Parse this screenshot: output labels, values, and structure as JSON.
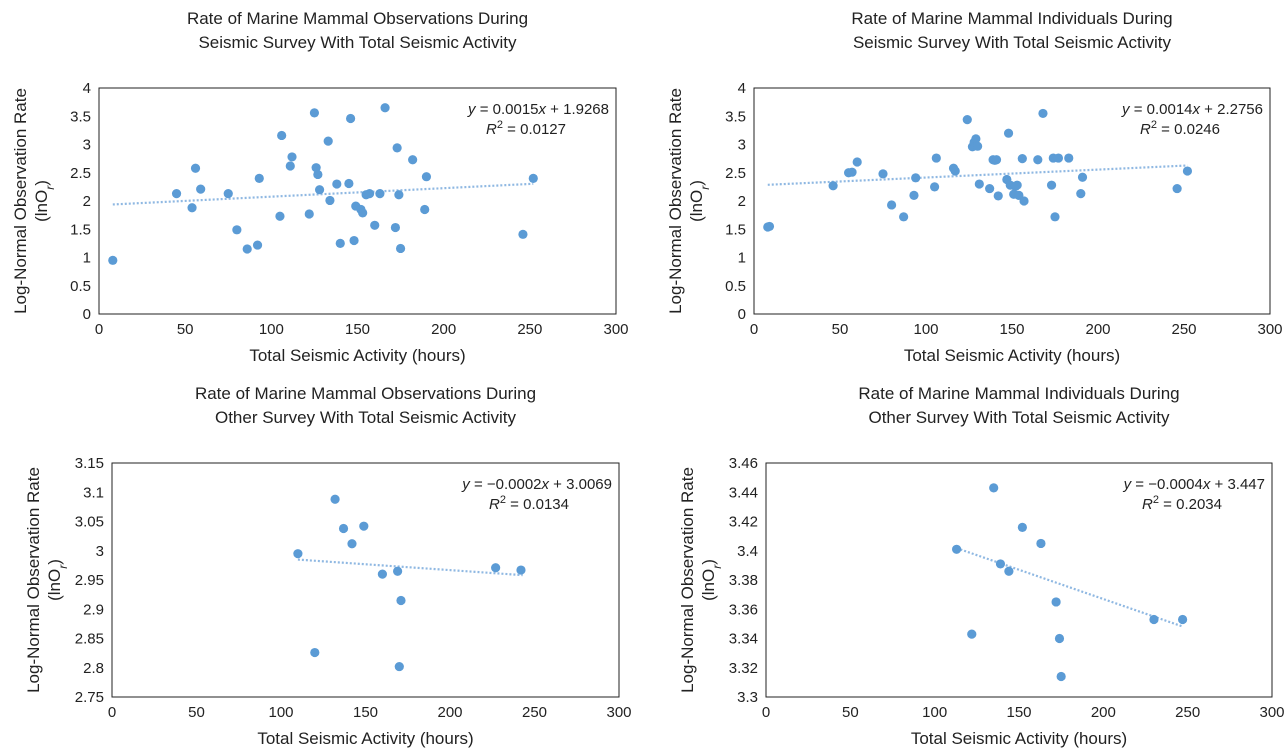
{
  "colors": {
    "point": "#5b9bd5",
    "trendline": "#8fb8e2",
    "frame": "#222222"
  },
  "chart_data": [
    {
      "type": "scatter",
      "title": [
        "Rate of Marine Mammal Observations During",
        "Seismic Survey With Total Seismic Activity"
      ],
      "xlabel": "Total Seismic Activity (hours)",
      "ylabel": [
        "Log-Normal Observation Rate",
        "(lnO",
        "r",
        ")"
      ],
      "xlim": [
        0,
        300
      ],
      "xticks": [
        "0",
        "50",
        "100",
        "150",
        "200",
        "250",
        "300"
      ],
      "ylim": [
        0,
        4
      ],
      "yticks": [
        "0",
        "0.5",
        "1",
        "1.5",
        "2",
        "2.5",
        "3",
        "3.5",
        "4"
      ],
      "trendline": {
        "slope": 0.0015,
        "intercept": 1.9268,
        "x_range": [
          8,
          252
        ]
      },
      "equation": {
        "prefix": "y",
        "text": " = 0.0015",
        "var": "x",
        "rest": " + 1.9268",
        "r2_label": "R",
        "r2_exp": "2",
        "r2_value": " = 0.0127"
      },
      "x": [
        8,
        45,
        54,
        56,
        59,
        75,
        80,
        86,
        92,
        93,
        105,
        106,
        111,
        112,
        122,
        125,
        126,
        127,
        128,
        133,
        134,
        138,
        140,
        145,
        146,
        148,
        149,
        152,
        153,
        155,
        157,
        160,
        163,
        166,
        172,
        173,
        174,
        175,
        182,
        189,
        190,
        246,
        252
      ],
      "y": [
        0.95,
        2.13,
        1.88,
        2.58,
        2.21,
        2.13,
        1.49,
        1.15,
        1.22,
        2.4,
        1.73,
        3.16,
        2.62,
        2.78,
        1.77,
        3.56,
        2.59,
        2.47,
        2.2,
        3.06,
        2.01,
        2.3,
        1.25,
        2.31,
        3.46,
        1.3,
        1.91,
        1.85,
        1.79,
        2.11,
        2.13,
        1.57,
        2.13,
        3.65,
        1.53,
        2.94,
        2.11,
        1.16,
        2.73,
        1.85,
        2.43,
        1.41,
        2.4
      ]
    },
    {
      "type": "scatter",
      "title": [
        "Rate of Marine Mammal Individuals During",
        "Seismic Survey With Total Seismic Activity"
      ],
      "xlabel": "Total Seismic Activity (hours)",
      "ylabel": [
        "Log-Normal Observation Rate",
        "(lnO",
        "r",
        ")"
      ],
      "xlim": [
        0,
        300
      ],
      "xticks": [
        "0",
        "50",
        "100",
        "150",
        "200",
        "250",
        "300"
      ],
      "ylim": [
        0,
        4
      ],
      "yticks": [
        "0",
        "0.5",
        "1",
        "1.5",
        "2",
        "2.5",
        "3",
        "3.5",
        "4"
      ],
      "trendline": {
        "slope": 0.0014,
        "intercept": 2.2756,
        "x_range": [
          8,
          252
        ]
      },
      "equation": {
        "prefix": "y",
        "text": " = 0.0014",
        "var": "x",
        "rest": " + 2.2756",
        "r2_label": "R",
        "r2_exp": "2",
        "r2_value": " = 0.0246"
      },
      "x": [
        8,
        9,
        46,
        55,
        57,
        60,
        75,
        80,
        87,
        93,
        94,
        105,
        106,
        116,
        117,
        124,
        127,
        128,
        129,
        130,
        131,
        137,
        139,
        140,
        141,
        142,
        147,
        148,
        149,
        151,
        152,
        153,
        154,
        156,
        157,
        165,
        168,
        173,
        174,
        175,
        177,
        183,
        190,
        191,
        246,
        252
      ],
      "y": [
        1.54,
        1.55,
        2.27,
        2.5,
        2.51,
        2.69,
        2.48,
        1.93,
        1.72,
        2.1,
        2.41,
        2.25,
        2.76,
        2.58,
        2.53,
        3.44,
        2.96,
        3.04,
        3.1,
        2.97,
        2.3,
        2.22,
        2.73,
        2.72,
        2.73,
        2.09,
        2.38,
        3.2,
        2.28,
        2.12,
        2.26,
        2.28,
        2.1,
        2.75,
        2.0,
        2.73,
        3.55,
        2.28,
        2.76,
        1.72,
        2.76,
        2.76,
        2.13,
        2.42,
        2.22,
        2.53
      ]
    },
    {
      "type": "scatter",
      "title": [
        "Rate of Marine Mammal Observations During",
        "Other Survey With Total Seismic Activity"
      ],
      "xlabel": "Total Seismic Activity (hours)",
      "ylabel": [
        "Log-Normal Observation Rate",
        "(lnO",
        "r",
        ")"
      ],
      "xlim": [
        0,
        300
      ],
      "xticks": [
        "0",
        "50",
        "100",
        "150",
        "200",
        "250",
        "300"
      ],
      "ylim": [
        2.75,
        3.15
      ],
      "yticks": [
        "2.75",
        "2.8",
        "2.85",
        "2.9",
        "2.95",
        "3",
        "3.05",
        "3.1",
        "3.15"
      ],
      "trendline": {
        "slope": -0.0002,
        "intercept": 3.0069,
        "x_range": [
          110,
          243
        ]
      },
      "equation": {
        "prefix": "y",
        "text": " = −0.0002",
        "var": "x",
        "rest": " + 3.0069",
        "r2_label": "R",
        "r2_exp": "2",
        "r2_value": " = 0.0134"
      },
      "x": [
        110,
        120,
        132,
        137,
        142,
        149,
        160,
        169,
        170,
        171,
        227,
        242
      ],
      "y": [
        2.995,
        2.826,
        3.088,
        3.038,
        3.012,
        3.042,
        2.96,
        2.965,
        2.802,
        2.915,
        2.971,
        2.967
      ]
    },
    {
      "type": "scatter",
      "title": [
        "Rate of Marine Mammal Individuals During",
        "Other Survey With Total Seismic Activity"
      ],
      "xlabel": "Total Seismic Activity (hours)",
      "ylabel": [
        "Log-Normal Observation Rate",
        "(lnO",
        "r",
        ")"
      ],
      "xlim": [
        0,
        300
      ],
      "xticks": [
        "0",
        "50",
        "100",
        "150",
        "200",
        "250",
        "300"
      ],
      "ylim": [
        3.3,
        3.46
      ],
      "yticks": [
        "3.3",
        "3.32",
        "3.34",
        "3.36",
        "3.38",
        "3.4",
        "3.42",
        "3.44",
        "3.46"
      ],
      "trendline": {
        "slope": -0.0004,
        "intercept": 3.447,
        "x_range": [
          113,
          247
        ]
      },
      "equation": {
        "prefix": "y",
        "text": " = −0.0004",
        "var": "x",
        "rest": " + 3.447",
        "r2_label": "R",
        "r2_exp": "2",
        "r2_value": " = 0.2034"
      },
      "x": [
        113,
        122,
        135,
        139,
        144,
        152,
        163,
        172,
        174,
        175,
        230,
        247
      ],
      "y": [
        3.401,
        3.343,
        3.443,
        3.391,
        3.386,
        3.416,
        3.405,
        3.365,
        3.34,
        3.314,
        3.353,
        3.353
      ]
    }
  ]
}
